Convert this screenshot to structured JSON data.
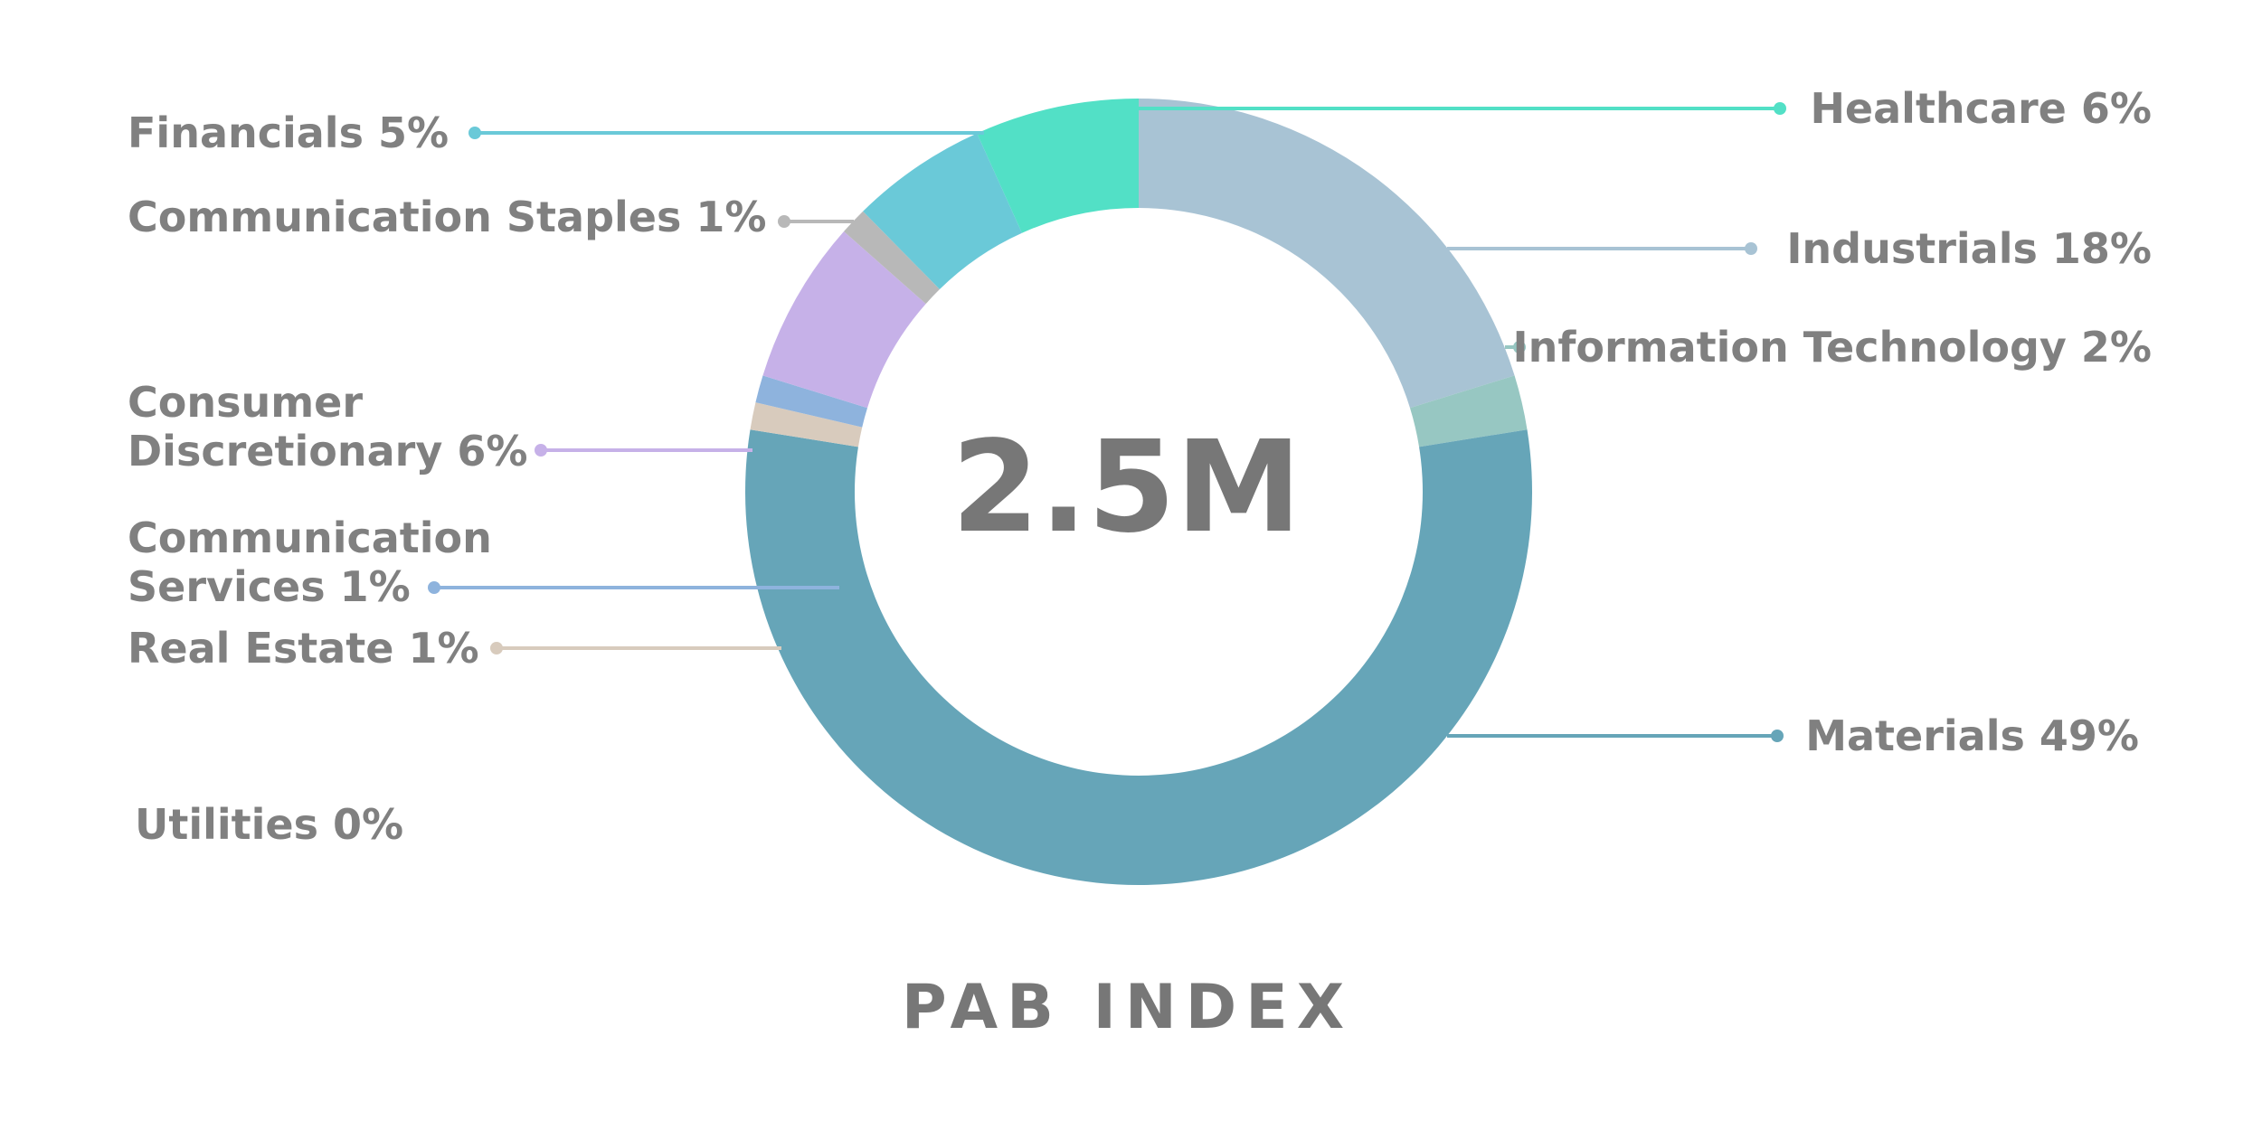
{
  "chart_data": {
    "type": "donut",
    "title": "PAB INDEX",
    "center_label": "2.5M",
    "categories": [
      "Industrials",
      "Information Technology",
      "Materials",
      "Real Estate",
      "Communication Services",
      "Consumer Discretionary",
      "Communication Staples",
      "Financials",
      "Healthcare",
      "Utilities"
    ],
    "values": [
      18,
      2,
      49,
      1,
      1,
      6,
      1,
      5,
      6,
      0
    ],
    "value_labels": [
      "18%",
      "2%",
      "49%",
      "1%",
      "1%",
      "6%",
      "1%",
      "5%",
      "6%",
      "0%"
    ],
    "colors": [
      "#a8c3d4",
      "#97c7c2",
      "#66a5b8",
      "#d8cbbd",
      "#8eb3dd",
      "#c6b1e8",
      "#b8b8b8",
      "#6ac9d8",
      "#52e0c6",
      "#cccccc"
    ]
  }
}
